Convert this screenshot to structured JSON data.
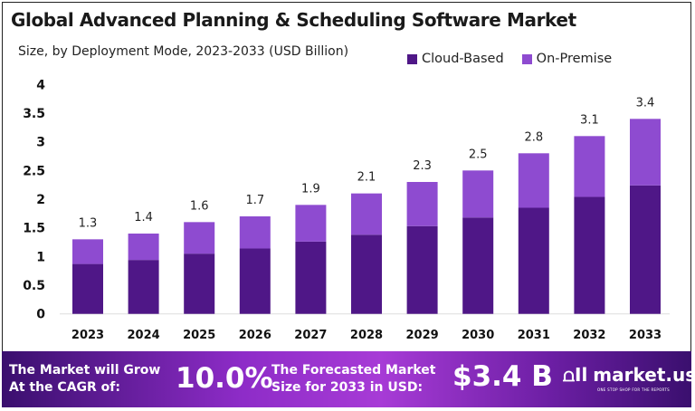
{
  "chart_data": {
    "type": "bar",
    "stacked": true,
    "title": "Global Advanced Planning & Scheduling Software Market",
    "subtitle": "Size, by Deployment Mode, 2023-2033 (USD Billion)",
    "categories": [
      "2023",
      "2024",
      "2025",
      "2026",
      "2027",
      "2028",
      "2029",
      "2030",
      "2031",
      "2032",
      "2033"
    ],
    "series": [
      {
        "name": "Cloud-Based",
        "color": "#4f1787",
        "values": [
          0.87,
          0.94,
          1.05,
          1.14,
          1.26,
          1.38,
          1.53,
          1.68,
          1.85,
          2.04,
          2.24
        ]
      },
      {
        "name": "On-Premise",
        "color": "#8e4bd0",
        "values": [
          0.43,
          0.46,
          0.55,
          0.56,
          0.64,
          0.72,
          0.77,
          0.82,
          0.95,
          1.06,
          1.16
        ]
      }
    ],
    "totals": [
      "1.3",
      "1.4",
      "1.6",
      "1.7",
      "1.9",
      "2.1",
      "2.3",
      "2.5",
      "2.8",
      "3.1",
      "3.4"
    ],
    "yticks": [
      "0",
      "0.5",
      "1",
      "1.5",
      "2",
      "2.5",
      "3",
      "3.5",
      "4"
    ],
    "ylim": [
      0,
      4
    ],
    "grid": false,
    "legend": "top-right",
    "xlabel": "",
    "ylabel": ""
  },
  "banner": {
    "cagr_label": [
      "The Market will Grow",
      "At the CAGR of:"
    ],
    "cagr_value": "10.0%",
    "forecast_label": [
      "The Forecasted Market",
      "Size for 2033 in USD:"
    ],
    "forecast_value": "$3.4 B",
    "logo_text": "market.us",
    "logo_tagline": "ONE STOP SHOP FOR THE REPORTS"
  }
}
